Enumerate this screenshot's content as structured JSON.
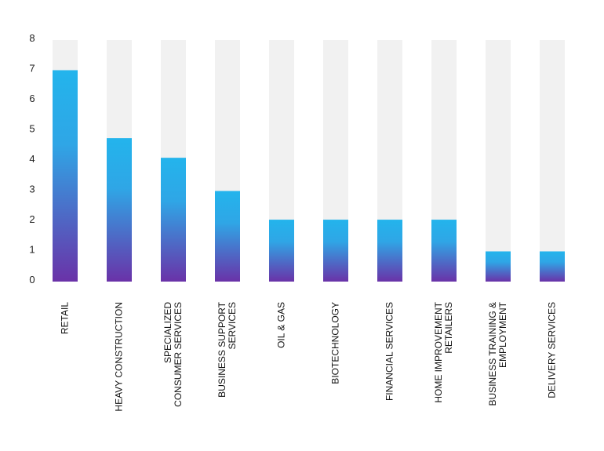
{
  "chart_data": {
    "type": "bar",
    "title": "",
    "xlabel": "",
    "ylabel": "",
    "ylim": [
      0,
      8
    ],
    "yticks": [
      0,
      1,
      2,
      3,
      4,
      5,
      6,
      7,
      8
    ],
    "grid": false,
    "legend": "none",
    "categories": [
      [
        "RETAIL"
      ],
      [
        "HEAVY CONSTRUCTION"
      ],
      [
        "SPECIALIZED",
        "CONSUMER SERVICES"
      ],
      [
        "BUSINESS SUPPORT",
        "SERVICES"
      ],
      [
        "OIL & GAS"
      ],
      [
        "BIOTECHNOLOGY"
      ],
      [
        "FINANCIAL SERVICES"
      ],
      [
        "HOME IMPROVEMENT",
        "RETAILERS"
      ],
      [
        "BUSINESS TRAINING &",
        "EMPLOYMENT"
      ],
      [
        "DELIVERY SERVICES"
      ]
    ],
    "values": [
      7,
      4.75,
      4.1,
      3,
      2.05,
      2.05,
      2.05,
      2.05,
      1,
      1
    ],
    "colors": {
      "bar_top": "#23b4ec",
      "bar_bottom": "#6a32a8",
      "track": "#f1f1f1",
      "text": "#222222"
    }
  }
}
